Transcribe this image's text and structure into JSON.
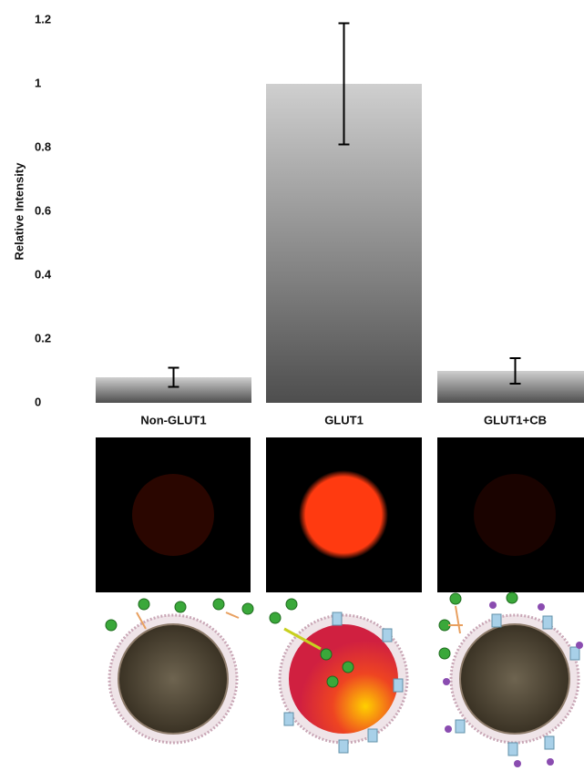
{
  "chart_data": {
    "type": "bar",
    "y_label": "Relative Intensity",
    "categories": [
      "Non-GLUT1",
      "GLUT1",
      "GLUT1+CB"
    ],
    "values": [
      0.08,
      1.0,
      0.1
    ],
    "errors": [
      0.03,
      0.19,
      0.04
    ],
    "ylim": [
      0,
      1.2
    ],
    "yticks": [
      0,
      0.2,
      0.4,
      0.6,
      0.8,
      1,
      1.2
    ],
    "grid": false
  }
}
